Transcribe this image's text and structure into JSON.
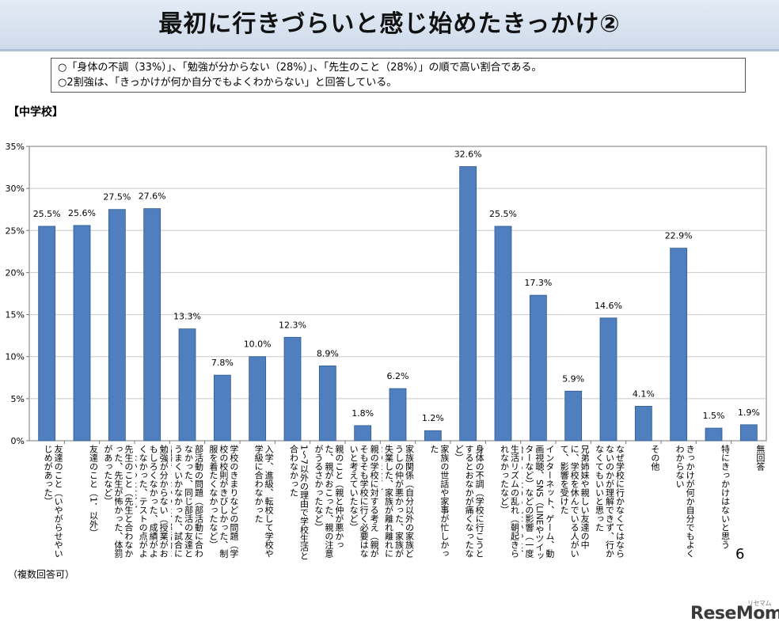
{
  "header": {
    "title": "最初に行きづらいと感じ始めたきっかけ②"
  },
  "summary": {
    "line1": "○「身体の不調（33%）」、「勉強が分からない（28%）」、「先生のこと（28%）」の順で高い割合である。",
    "line2": "○2割強は、「きっかけが何か自分でもよくわからない」と回答している。"
  },
  "section_label": "【中学校】",
  "footnote": "（複数回答可）",
  "page_number": "6",
  "brand": {
    "name": "ReseMom",
    "sub": "リセマム"
  },
  "colors": {
    "bar": "#4f7fbf",
    "bar_stroke": "#2f5b93",
    "title_bg": "#d6e1ee"
  },
  "chart_data": {
    "type": "bar",
    "categories": [
      "友達のこと（いやがらせやいじめがあった）",
      "友達のこと（1．以外）",
      "先生のこと（先生と合わなかった、先生が怖かった、体罰があったなど）",
      "勉強が分からない（授業がおもしろくなかった、成績がよくなかった、テストの点がよくなかったなど）",
      "部活動の問題（部活動に合わなかった、同じ部活の友達とうまくいかなかった、試合に出場できなかった、部活動に行きたくなかったなど）",
      "学校のきまりなどの問題（学校の校則がきびしかった、制服を着たくなかったなど）",
      "入学、進級、転校して学校や学級に合わなかった",
      "1～7以外の理由で学校生活と合わなかった",
      "親のこと（親と仲が悪かった、親がおこった、親の注意がうるさかったなど）",
      "親の学校に対する考え（親がそもそも学校に行く必要はないと考えていたなど）",
      "家族関係（自分以外の家族どうしの仲が悪かった、家族が失業した、家族が離れ離れになったなど）",
      "家族の世話や家事が忙しかった",
      "身体の不調（学校に行こうとするとおなかが痛くなったなど）",
      "生活リズムの乱れ（朝起きられなかったなど）",
      "インターネット、ゲーム、動画視聴、SNS（LINEやツイッターなど）などの影響（一度始めると止められなかった、学校に行くより楽しかったなど）",
      "兄弟姉妹や親しい友達の中に、学校を休んでいる人がいて、影響を受けた",
      "なぜ学校に行かなくてはならないのかが理解できず、行かなくてもいいと思った",
      "その他",
      "きっかけが何か自分でもよくわからない",
      "特にきっかけはないと思う",
      "無回答"
    ],
    "values": [
      25.5,
      25.6,
      27.5,
      27.6,
      13.3,
      7.8,
      10.0,
      12.3,
      8.9,
      1.8,
      6.2,
      1.2,
      32.6,
      25.5,
      17.3,
      5.9,
      14.6,
      4.1,
      22.9,
      1.5,
      1.9
    ],
    "value_labels": [
      "25.5%",
      "25.6%",
      "27.5%",
      "27.6%",
      "13.3%",
      "7.8%",
      "10.0%",
      "12.3%",
      "8.9%",
      "1.8%",
      "6.2%",
      "1.2%",
      "32.6%",
      "25.5%",
      "17.3%",
      "5.9%",
      "14.6%",
      "4.1%",
      "22.9%",
      "1.5%",
      "1.9%"
    ],
    "ylim": [
      0,
      35
    ],
    "yticks": [
      "0%",
      "5%",
      "10%",
      "15%",
      "20%",
      "25%",
      "30%",
      "35%"
    ],
    "grid": true,
    "legend": "none"
  }
}
